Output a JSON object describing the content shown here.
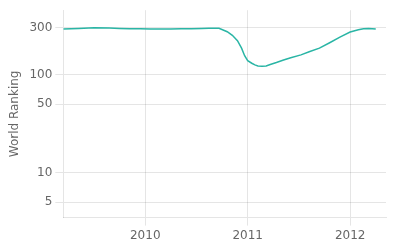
{
  "chart_data": {
    "type": "line",
    "ylabel": "World Ranking",
    "x": [
      2009.2,
      2009.35,
      2009.5,
      2009.65,
      2009.75,
      2009.85,
      2009.95,
      2010.05,
      2010.15,
      2010.25,
      2010.35,
      2010.45,
      2010.55,
      2010.62,
      2010.72,
      2010.8,
      2010.85,
      2010.9,
      2010.94,
      2010.97,
      2011.0,
      2011.04,
      2011.07,
      2011.1,
      2011.14,
      2011.18,
      2011.22,
      2011.28,
      2011.35,
      2011.42,
      2011.52,
      2011.6,
      2011.7,
      2011.8,
      2011.9,
      2012.0,
      2012.08,
      2012.13,
      2012.18,
      2012.25
    ],
    "values": [
      290,
      294,
      298,
      297,
      294,
      292,
      291,
      290,
      289,
      290,
      292,
      291,
      293,
      295,
      295,
      272,
      250,
      220,
      185,
      155,
      138,
      130,
      125,
      122,
      121,
      122,
      126,
      132,
      140,
      148,
      158,
      170,
      185,
      210,
      240,
      270,
      285,
      292,
      293,
      290
    ],
    "color": "#2ab5a5",
    "xlim": [
      2009.2,
      2012.35
    ],
    "xticks": [
      2010,
      2011,
      2012
    ],
    "ylim": [
      3.5,
      450
    ],
    "yticks": [
      5,
      10,
      50,
      100,
      300
    ],
    "log": "y",
    "grid": true
  }
}
